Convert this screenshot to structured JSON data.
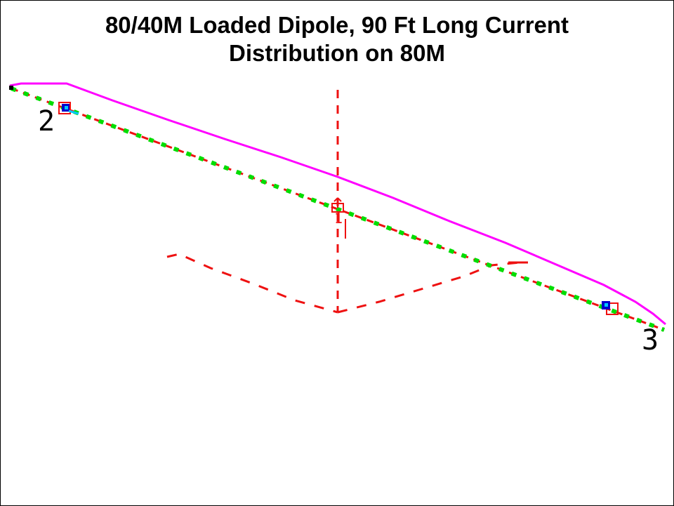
{
  "title": {
    "line1": "80/40M Loaded Dipole, 90 Ft Long Current",
    "line2": "Distribution on 80M"
  },
  "segment_labels": [
    "2",
    "3",
    "1"
  ],
  "colors": {
    "wire": "#00dd00",
    "current": "#ff00ff",
    "structure": "#ee1111",
    "load": "#0000cc",
    "load_inner": "#00c8ff",
    "text": "#000000"
  }
}
